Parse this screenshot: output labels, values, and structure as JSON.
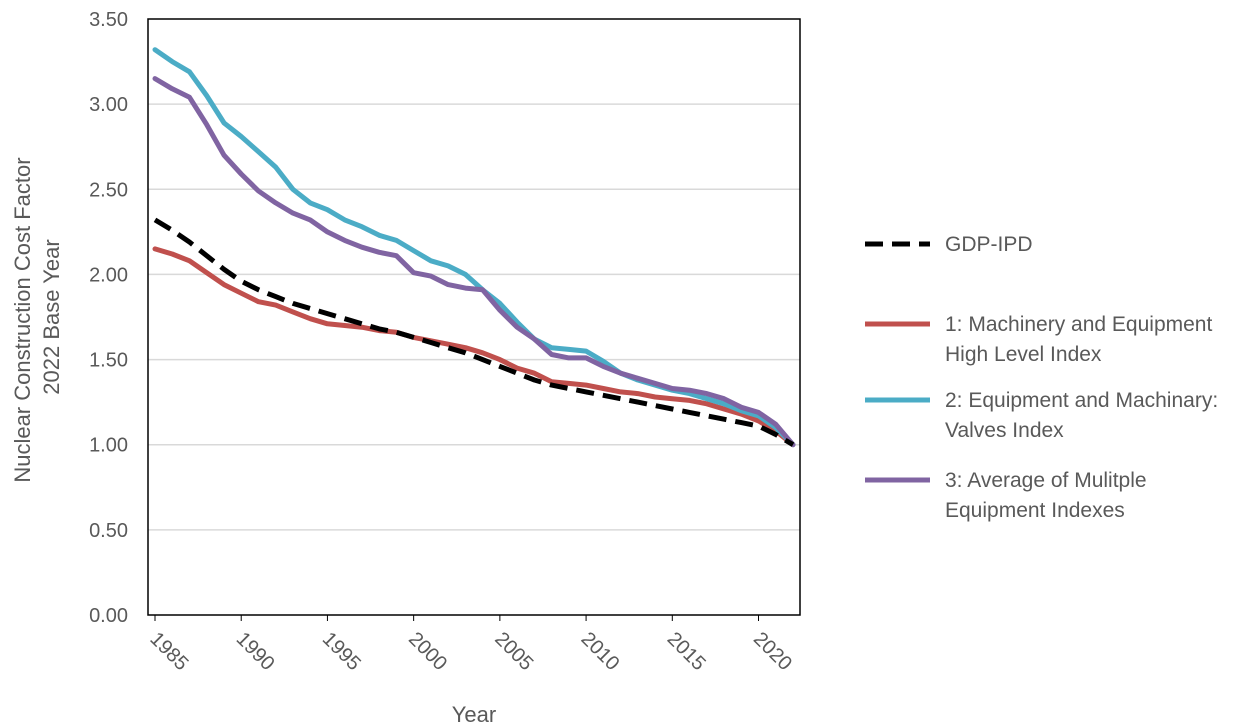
{
  "chart_data": {
    "type": "line",
    "xlabel": "Year",
    "ylabel": [
      "Nuclear Construction Cost Factor",
      "2022 Base Year"
    ],
    "xlim": [
      1985,
      2022
    ],
    "ylim": [
      0,
      3.5
    ],
    "x_ticks": [
      1985,
      1990,
      1995,
      2000,
      2005,
      2010,
      2015,
      2020
    ],
    "y_ticks": [
      "0.00",
      "0.50",
      "1.00",
      "1.50",
      "2.00",
      "2.50",
      "3.00",
      "3.50"
    ],
    "grid": "horizontal",
    "legend_position": "right",
    "x": [
      1985,
      1986,
      1987,
      1988,
      1989,
      1990,
      1991,
      1992,
      1993,
      1994,
      1995,
      1996,
      1997,
      1998,
      1999,
      2000,
      2001,
      2002,
      2003,
      2004,
      2005,
      2006,
      2007,
      2008,
      2009,
      2010,
      2011,
      2012,
      2013,
      2014,
      2015,
      2016,
      2017,
      2018,
      2019,
      2020,
      2021,
      2022
    ],
    "series": [
      {
        "name": "GDP-IPD",
        "label_lines": [
          "GDP-IPD"
        ],
        "color": "#000000",
        "dashed": true,
        "values": [
          2.32,
          2.26,
          2.19,
          2.11,
          2.03,
          1.96,
          1.91,
          1.87,
          1.83,
          1.8,
          1.77,
          1.74,
          1.71,
          1.68,
          1.66,
          1.63,
          1.6,
          1.57,
          1.54,
          1.5,
          1.46,
          1.42,
          1.38,
          1.35,
          1.33,
          1.31,
          1.29,
          1.27,
          1.25,
          1.23,
          1.21,
          1.19,
          1.17,
          1.15,
          1.13,
          1.11,
          1.06,
          1.0
        ]
      },
      {
        "name": "1: Machinery and Equipment High Level Index",
        "label_lines": [
          "1: Machinery and Equipment",
          "High Level Index"
        ],
        "color": "#C0504D",
        "dashed": false,
        "values": [
          2.15,
          2.12,
          2.08,
          2.01,
          1.94,
          1.89,
          1.84,
          1.82,
          1.78,
          1.74,
          1.71,
          1.7,
          1.69,
          1.67,
          1.66,
          1.63,
          1.61,
          1.59,
          1.57,
          1.54,
          1.5,
          1.45,
          1.42,
          1.37,
          1.36,
          1.35,
          1.33,
          1.31,
          1.3,
          1.28,
          1.27,
          1.26,
          1.24,
          1.21,
          1.18,
          1.14,
          1.08,
          1.0
        ]
      },
      {
        "name": "2: Equipment and Machinary: Valves Index",
        "label_lines": [
          "2: Equipment and Machinary:",
          "Valves Index"
        ],
        "color": "#4BACC6",
        "dashed": false,
        "values": [
          3.32,
          3.25,
          3.19,
          3.05,
          2.89,
          2.81,
          2.72,
          2.63,
          2.5,
          2.42,
          2.38,
          2.32,
          2.28,
          2.23,
          2.2,
          2.14,
          2.08,
          2.05,
          2.0,
          1.91,
          1.83,
          1.72,
          1.62,
          1.57,
          1.56,
          1.55,
          1.49,
          1.42,
          1.38,
          1.35,
          1.32,
          1.3,
          1.27,
          1.24,
          1.2,
          1.17,
          1.1,
          1.0
        ]
      },
      {
        "name": "3: Average of Mulitple Equipment Indexes",
        "label_lines": [
          "3: Average of Mulitple",
          "Equipment Indexes"
        ],
        "color": "#8064A2",
        "dashed": false,
        "values": [
          3.15,
          3.09,
          3.04,
          2.88,
          2.7,
          2.59,
          2.49,
          2.42,
          2.36,
          2.32,
          2.25,
          2.2,
          2.16,
          2.13,
          2.11,
          2.01,
          1.99,
          1.94,
          1.92,
          1.91,
          1.79,
          1.69,
          1.62,
          1.53,
          1.51,
          1.51,
          1.46,
          1.42,
          1.39,
          1.36,
          1.33,
          1.32,
          1.3,
          1.27,
          1.22,
          1.19,
          1.12,
          1.0
        ]
      }
    ]
  }
}
